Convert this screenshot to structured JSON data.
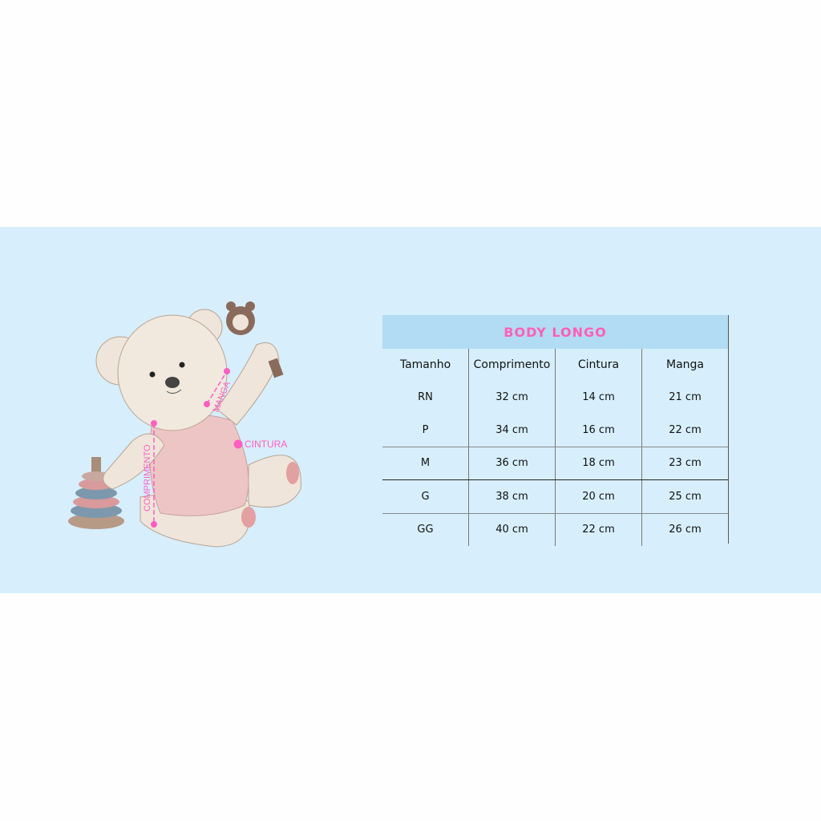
{
  "chart": {
    "title": "BODY LONGO",
    "columns": [
      "Tamanho",
      "Comprimento",
      "Cintura",
      "Manga"
    ],
    "rows": [
      [
        "RN",
        "32 cm",
        "14 cm",
        "21 cm"
      ],
      [
        "P",
        "34 cm",
        "16 cm",
        "22 cm"
      ],
      [
        "M",
        "36 cm",
        "18 cm",
        "23 cm"
      ],
      [
        "G",
        "38 cm",
        "20 cm",
        "25 cm"
      ],
      [
        "GG",
        "40 cm",
        "22 cm",
        "26 cm"
      ]
    ]
  },
  "illustration": {
    "labels": {
      "length": "COMPRIMENTO",
      "sleeve": "MANGA",
      "waist": "CINTURA"
    }
  },
  "colors": {
    "banner": "#d7eefc",
    "header": "#b2dbf4",
    "accent": "#ff5fb5"
  }
}
